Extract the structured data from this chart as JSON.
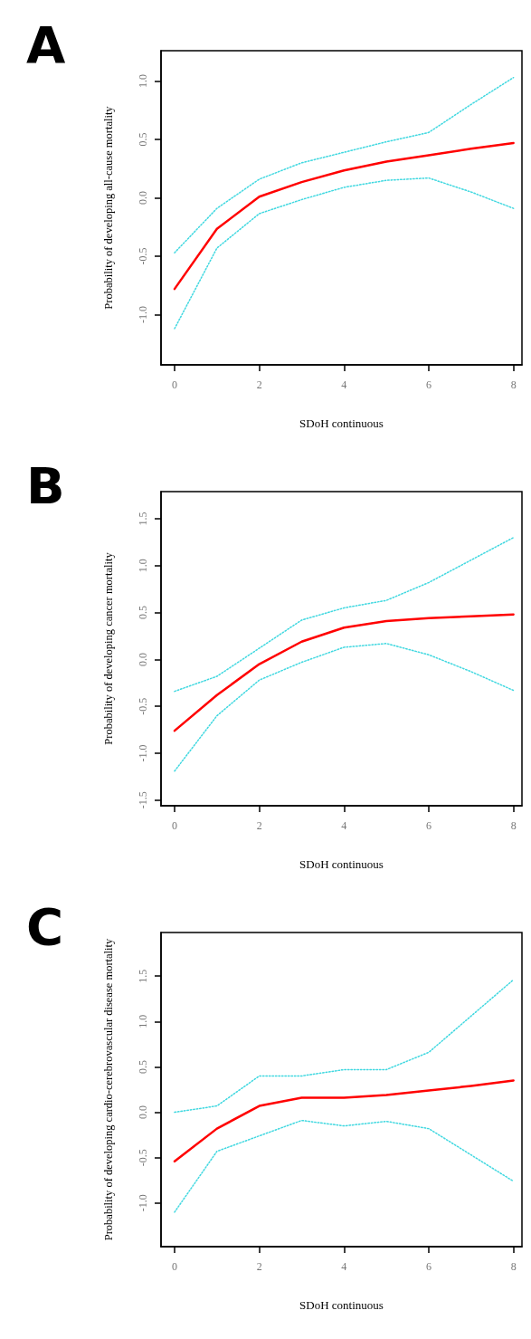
{
  "chart_data": [
    {
      "type": "line",
      "title": "A",
      "xlabel": "SDoH continuous",
      "ylabel": "Probability of developing all-cause mortality",
      "x": [
        0,
        1,
        2,
        3,
        4,
        5,
        6,
        7,
        8
      ],
      "xlim": [
        -0.32,
        8.2
      ],
      "xticks": [
        0,
        2,
        4,
        6,
        8
      ],
      "ylim": [
        -1.43,
        1.26
      ],
      "yticks": [
        {
          "value": -1,
          "label": "-1.0"
        },
        -0.5,
        {
          "value": 0,
          "label": "0.0"
        },
        0.5,
        {
          "value": 1,
          "label": "1.0"
        }
      ],
      "marker": "none",
      "series": [
        {
          "color": "#ff0000",
          "line_style": "solid",
          "values": [
            -0.78,
            -0.265,
            0.01,
            0.135,
            0.235,
            0.31,
            0.365,
            0.42,
            0.47
          ]
        },
        {
          "color": "#40d8e0",
          "line_style": "dotted",
          "values": [
            -0.47,
            -0.09,
            0.16,
            0.3,
            0.39,
            0.48,
            0.56,
            0.8,
            1.03
          ]
        },
        {
          "color": "#40d8e0",
          "line_style": "dotted",
          "values": [
            -1.12,
            -0.43,
            -0.135,
            -0.015,
            0.09,
            0.15,
            0.17,
            0.05,
            -0.09
          ]
        }
      ]
    },
    {
      "type": "line",
      "title": "B",
      "xlabel": "SDoH continuous",
      "ylabel": "Probability of developing cancer mortality",
      "x": [
        0,
        1,
        2,
        3,
        4,
        5,
        6,
        7,
        8
      ],
      "xlim": [
        -0.32,
        8.2
      ],
      "xticks": [
        0,
        2,
        4,
        6,
        8
      ],
      "ylim": [
        -1.56,
        1.79
      ],
      "yticks": [
        -1.5,
        {
          "value": -1,
          "label": "-1.0"
        },
        -0.5,
        {
          "value": 0,
          "label": "0.0"
        },
        0.5,
        {
          "value": 1,
          "label": "1.0"
        },
        1.5
      ],
      "marker": "none",
      "series": [
        {
          "color": "#ff0000",
          "line_style": "solid",
          "values": [
            -0.76,
            -0.38,
            -0.05,
            0.19,
            0.34,
            0.41,
            0.44,
            0.46,
            0.48
          ]
        },
        {
          "color": "#40d8e0",
          "line_style": "dotted",
          "values": [
            -0.34,
            -0.18,
            0.12,
            0.42,
            0.55,
            0.63,
            0.82,
            1.06,
            1.3
          ]
        },
        {
          "color": "#40d8e0",
          "line_style": "dotted",
          "values": [
            -1.19,
            -0.6,
            -0.22,
            -0.03,
            0.13,
            0.17,
            0.05,
            -0.13,
            -0.33
          ]
        }
      ]
    },
    {
      "type": "line",
      "title": "C",
      "xlabel": "SDoH continuous",
      "ylabel": "Probability of developing cardio-cerebrovascular disease mortality",
      "x": [
        0,
        1,
        2,
        3,
        4,
        5,
        6,
        7,
        8
      ],
      "xlim": [
        -0.32,
        8.2
      ],
      "xticks": [
        0,
        2,
        4,
        6,
        8
      ],
      "ylim": [
        -1.48,
        1.98
      ],
      "yticks": [
        {
          "value": -1,
          "label": "-1.0"
        },
        -0.5,
        {
          "value": 0,
          "label": "0.0"
        },
        0.5,
        {
          "value": 1,
          "label": "1.0"
        },
        1.5
      ],
      "marker": "none",
      "series": [
        {
          "color": "#ff0000",
          "line_style": "solid",
          "values": [
            -0.54,
            -0.18,
            0.07,
            0.16,
            0.16,
            0.19,
            0.24,
            0.29,
            0.35
          ]
        },
        {
          "color": "#40d8e0",
          "line_style": "dotted",
          "values": [
            0.0,
            0.07,
            0.4,
            0.4,
            0.47,
            0.47,
            0.66,
            1.06,
            1.46
          ]
        },
        {
          "color": "#40d8e0",
          "line_style": "dotted",
          "values": [
            -1.1,
            -0.43,
            -0.26,
            -0.09,
            -0.15,
            -0.1,
            -0.18,
            -0.47,
            -0.76
          ]
        }
      ]
    }
  ]
}
